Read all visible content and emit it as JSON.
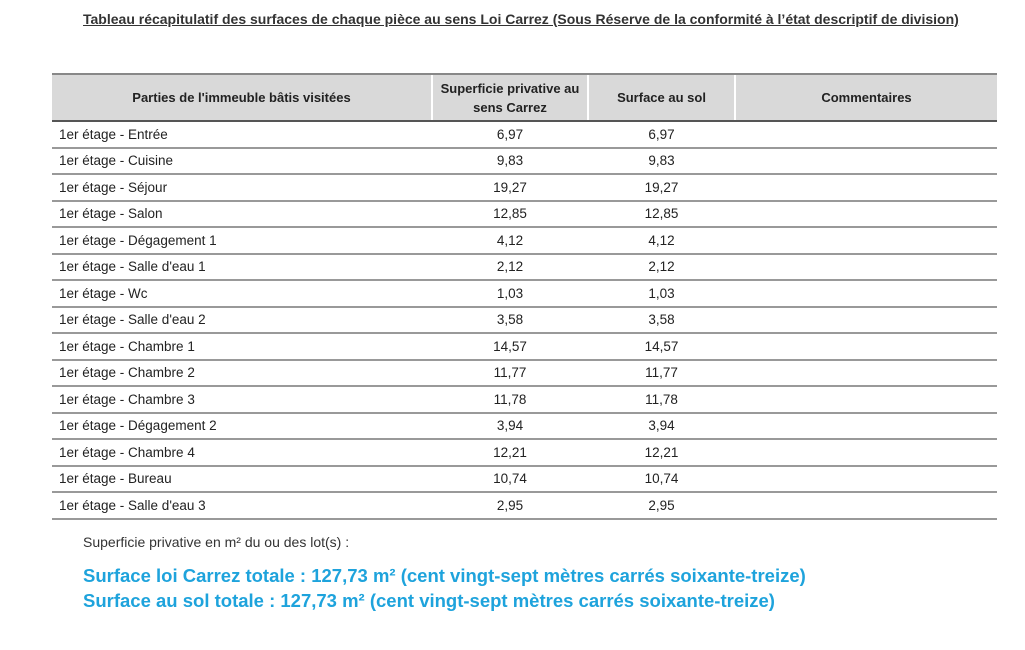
{
  "title": "Tableau récapitulatif des surfaces de chaque pièce au sens Loi Carrez (Sous Réserve de la conformité à l’état descriptif de division)",
  "table": {
    "header": [
      "Parties de l'immeuble bâtis visitées",
      "Superficie privative au sens Carrez",
      "Surface au sol",
      "Commentaires"
    ],
    "rows": [
      [
        "1er étage - Entrée",
        "6,97",
        "6,97"
      ],
      [
        "1er étage - Cuisine",
        "9,83",
        "9,83"
      ],
      [
        "1er étage - Séjour",
        "19,27",
        "19,27"
      ],
      [
        "1er étage - Salon",
        "12,85",
        "12,85"
      ],
      [
        "1er étage - Dégagement 1",
        "4,12",
        "4,12"
      ],
      [
        "1er étage - Salle d'eau 1",
        "2,12",
        "2,12"
      ],
      [
        "1er étage - Wc",
        "1,03",
        "1,03"
      ],
      [
        "1er étage - Salle d'eau 2",
        "3,58",
        "3,58"
      ],
      [
        "1er étage - Chambre 1",
        "14,57",
        "14,57"
      ],
      [
        "1er étage - Chambre 2",
        "11,77",
        "11,77"
      ],
      [
        "1er étage - Chambre 3",
        "11,78",
        "11,78"
      ],
      [
        "1er étage - Dégagement 2",
        "3,94",
        "3,94"
      ],
      [
        "1er étage - Chambre 4",
        "12,21",
        "12,21"
      ],
      [
        "1er étage - Bureau",
        "10,74",
        "10,74"
      ],
      [
        "1er étage - Salle d'eau 3",
        "2,95",
        "2,95"
      ]
    ]
  },
  "summary": {
    "label": "Superficie privative en m² du ou des lot(s) :",
    "lines": [
      "Surface loi Carrez totale : 127,73 m² (cent vingt-sept mètres carrés soixante-treize)",
      "Surface au sol totale : 127,73 m² (cent vingt-sept mètres carrés soixante-treize)"
    ]
  }
}
